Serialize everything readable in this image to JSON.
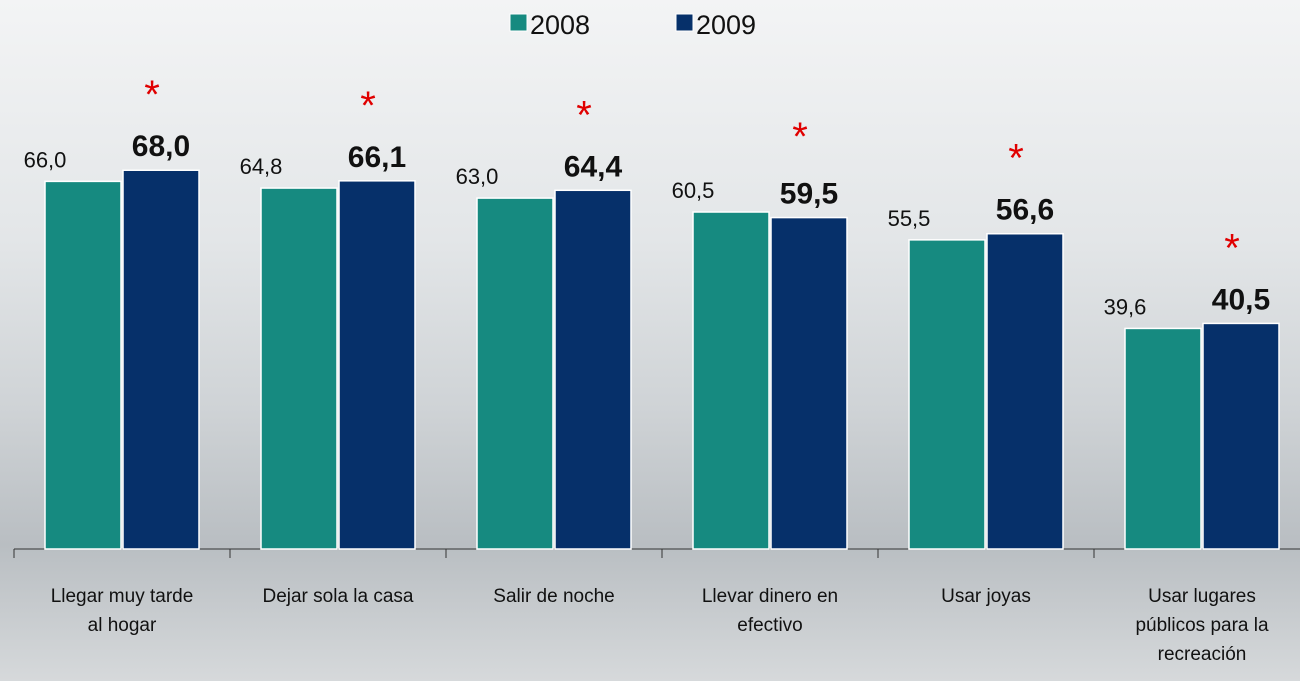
{
  "chart_data": {
    "type": "bar",
    "categories": [
      "Llegar muy tarde\nal hogar",
      "Dejar sola la casa",
      "Salir de noche",
      "Llevar dinero en\nefectivo",
      "Usar joyas",
      "Usar lugares\npúblicos para la\nrecreación"
    ],
    "series": [
      {
        "name": "2008",
        "color": "#168a80",
        "values": [
          66.0,
          64.8,
          63.0,
          60.5,
          55.5,
          39.6
        ],
        "value_labels": [
          "66,0",
          "64,8",
          "63,0",
          "60,5",
          "55,5",
          "39,6"
        ]
      },
      {
        "name": "2009",
        "color": "#06306a",
        "values": [
          68.0,
          66.1,
          64.4,
          59.5,
          56.6,
          40.5
        ],
        "value_labels": [
          "68,0",
          "66,1",
          "64,4",
          "59,5",
          "56,6",
          "40,5"
        ]
      }
    ],
    "annotations": [
      "*",
      "*",
      "*",
      "*",
      "*",
      "*"
    ],
    "ylim": [
      0,
      100
    ],
    "legend": "top"
  }
}
